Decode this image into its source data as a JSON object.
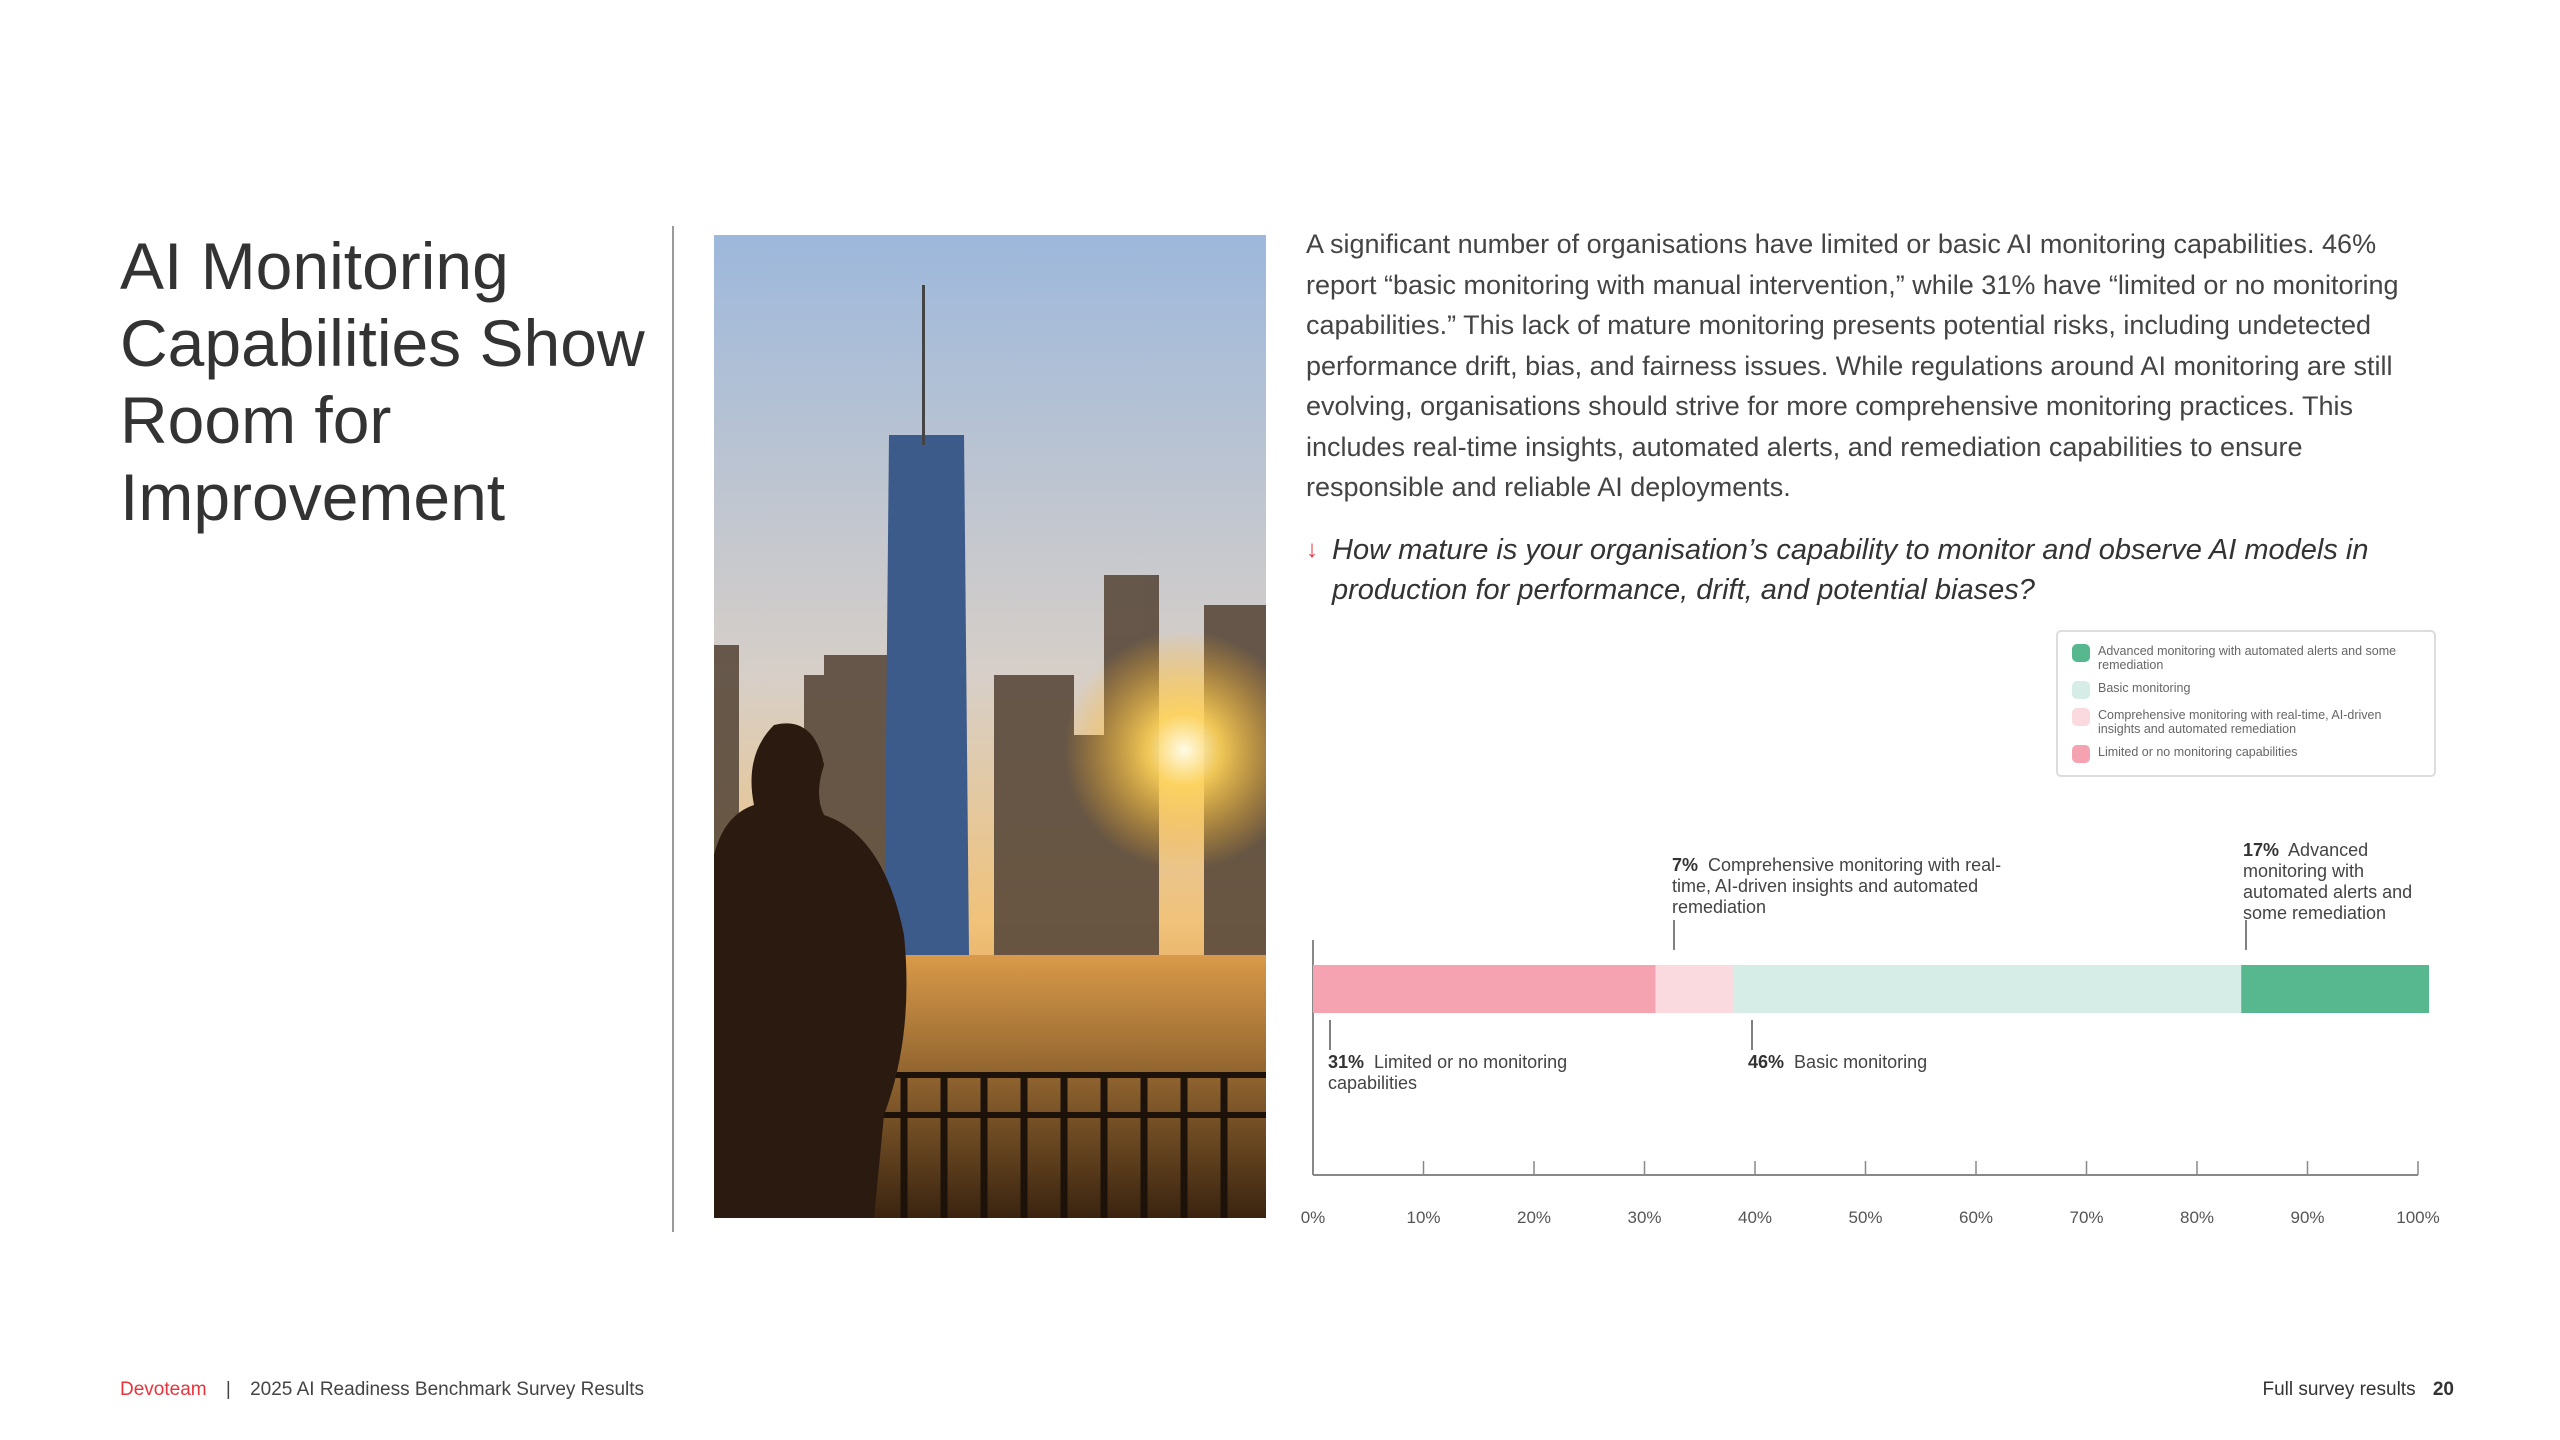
{
  "title": "AI Monitoring Capabilities Show Room for Improvement",
  "paragraph": "A significant number of organisations have limited or basic AI monitoring capabilities. 46% report “basic monitoring with manual intervention,” while 31% have “limited or no monitoring capabilities.” This lack of mature monitoring presents potential risks, including undetected performance drift, bias, and fairness issues. While regulations around AI monitoring are still evolving, organisations should strive for more comprehensive monitoring practices. This includes real-time insights, automated alerts, and remediation capabilities to ensure responsible and reliable AI deployments.",
  "question": "How mature is your organisation’s capability to monitor and observe AI models in production for performance, drift, and potential biases?",
  "question_icon": "arrow-down-icon",
  "legend": [
    {
      "label": "Advanced  monitoring with automated alerts and some remediation",
      "color": "#57b88f"
    },
    {
      "label": "Basic monitoring",
      "color": "#d6ece6"
    },
    {
      "label": "Comprehensive monitoring with real-time, AI-driven insights and automated remediation",
      "color": "#fadadf"
    },
    {
      "label": "Limited or no monitoring capabilities",
      "color": "#f5a3b0"
    }
  ],
  "chart_data": {
    "type": "bar",
    "orientation": "horizontal-stacked",
    "xlim": [
      0,
      100
    ],
    "x_ticks": [
      "0%",
      "10%",
      "20%",
      "30%",
      "40%",
      "50%",
      "60%",
      "70%",
      "80%",
      "90%",
      "100%"
    ],
    "grid": false,
    "legend_position": "top-right",
    "series": [
      {
        "name": "Limited or no monitoring capabilities",
        "value": 31,
        "color": "#f5a3b0",
        "pct": "31%",
        "annotation": "Limited or no monitoring capabilities"
      },
      {
        "name": "Comprehensive monitoring with real-time, AI-driven insights and automated remediation",
        "value": 7,
        "color": "#fadadf",
        "pct": "7%",
        "annotation": "Comprehensive monitoring with real-time, AI-driven insights and automated remediation"
      },
      {
        "name": "Basic monitoring",
        "value": 46,
        "color": "#d6ece6",
        "pct": "46%",
        "annotation": "Basic monitoring"
      },
      {
        "name": "Advanced  monitoring with automated alerts and some remediation",
        "value": 17,
        "color": "#57b88f",
        "pct": "17%",
        "annotation": "Advanced monitoring with automated alerts and some remediation"
      }
    ]
  },
  "footer": {
    "brand": "Devoteam",
    "separator": "|",
    "report": "2025 AI Readiness Benchmark Survey Results",
    "section": "Full survey results",
    "page": "20"
  }
}
